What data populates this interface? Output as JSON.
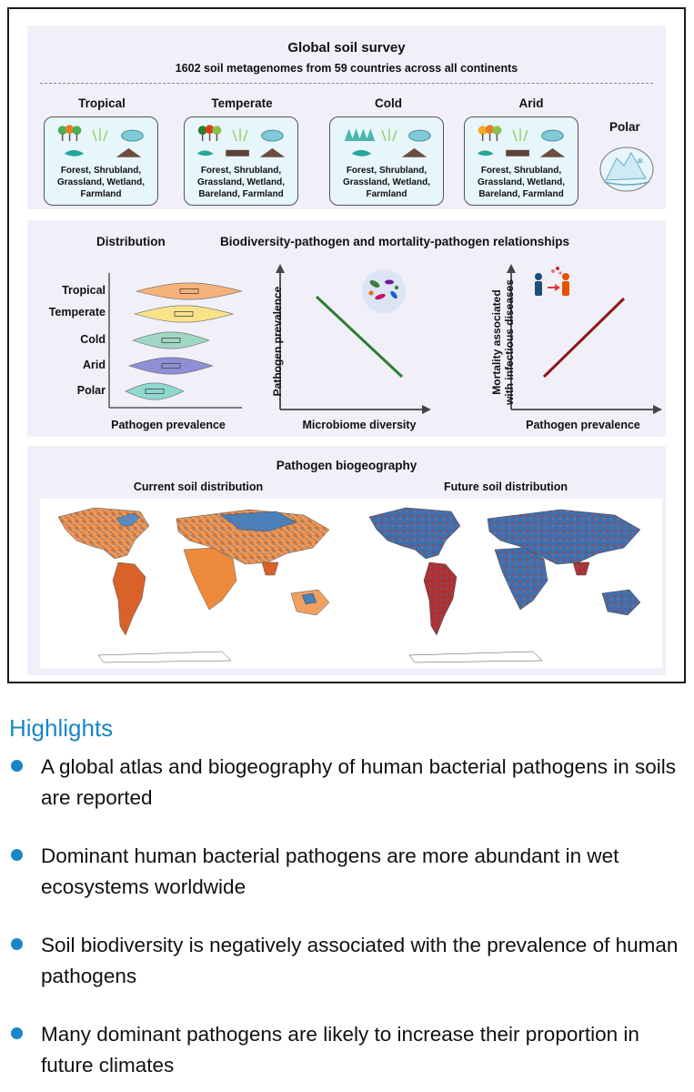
{
  "survey": {
    "title": "Global soil survey",
    "subtitle": "1602 soil metagenomes from 59 countries across all continents",
    "biomes": [
      {
        "name": "Tropical",
        "types": "Forest, Shrubland, Grassland, Wetland, Farmland"
      },
      {
        "name": "Temperate",
        "types": "Forest, Shrubland, Grassland, Wetland, Bareland, Farmland"
      },
      {
        "name": "Cold",
        "types": "Forest, Shrubland, Grassland, Wetland, Farmland"
      },
      {
        "name": "Arid",
        "types": "Forest, Shrubland, Grassland, Wetland, Bareland, Farmland"
      },
      {
        "name": "Polar",
        "types": ""
      }
    ]
  },
  "relations": {
    "distribution_title": "Distribution",
    "relationships_title": "Biodiversity-pathogen and mortality-pathogen relationships",
    "distribution_rows": [
      "Tropical",
      "Temperate",
      "Cold",
      "Arid",
      "Polar"
    ],
    "distribution_colors": [
      "#f5b27a",
      "#f7e38a",
      "#9fd6c4",
      "#8e8fd4",
      "#8fd8cf"
    ],
    "distribution_xlabel": "Pathogen prevalence",
    "plot1": {
      "ylabel": "Pathogen prevalence",
      "xlabel": "Microbiome diversity",
      "trend": "negative",
      "color": "#2e7d32"
    },
    "plot2": {
      "ylabel_line1": "Mortality associated",
      "ylabel_line2": "with infectious diseases",
      "xlabel": "Pathogen prevalence",
      "trend": "positive",
      "color": "#8b1a1a"
    }
  },
  "biogeography": {
    "title": "Pathogen biogeography",
    "current_title": "Current soil distribution",
    "future_title": "Future soil distribution"
  },
  "highlights": {
    "heading": "Highlights",
    "items": [
      "A global atlas and biogeography of human bacterial pathogens in soils are reported",
      "Dominant human bacterial pathogens are more abundant in wet ecosystems worldwide",
      "Soil biodiversity is negatively associated with the prevalence of human pathogens",
      "Many dominant pathogens are likely to increase their proportion in future climates"
    ]
  },
  "colors": {
    "accent": "#1a86c7",
    "panel": "#f1eff8",
    "biome_box": "#e6f6fb"
  }
}
